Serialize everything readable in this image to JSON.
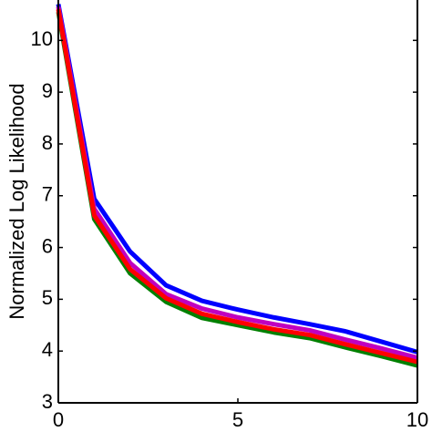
{
  "chart_data": {
    "type": "line",
    "y_label": "Normalized Log Likelihood",
    "x": [
      0,
      1,
      2,
      3,
      4,
      5,
      6,
      7,
      8,
      9,
      10
    ],
    "series": [
      {
        "color": "#0000ff",
        "values": [
          10.7,
          6.94,
          5.92,
          5.27,
          4.97,
          4.8,
          4.65,
          4.52,
          4.38,
          4.18,
          3.98
        ]
      },
      {
        "color": "#008000",
        "values": [
          10.55,
          6.55,
          5.5,
          4.95,
          4.64,
          4.5,
          4.36,
          4.25,
          4.07,
          3.9,
          3.72
        ]
      },
      {
        "color": "#c000c0",
        "values": [
          10.65,
          6.75,
          5.7,
          5.1,
          4.82,
          4.65,
          4.52,
          4.4,
          4.22,
          4.05,
          3.87
        ]
      },
      {
        "color": "#ff0000",
        "values": [
          10.6,
          6.62,
          5.58,
          5.02,
          4.72,
          4.56,
          4.42,
          4.31,
          4.13,
          3.96,
          3.79
        ]
      }
    ],
    "xlim": [
      0,
      10
    ],
    "xticks": [
      0,
      5,
      10
    ],
    "ylim": [
      3,
      10.78
    ],
    "yticks": [
      3,
      4,
      5,
      6,
      7,
      8,
      9,
      10
    ]
  }
}
